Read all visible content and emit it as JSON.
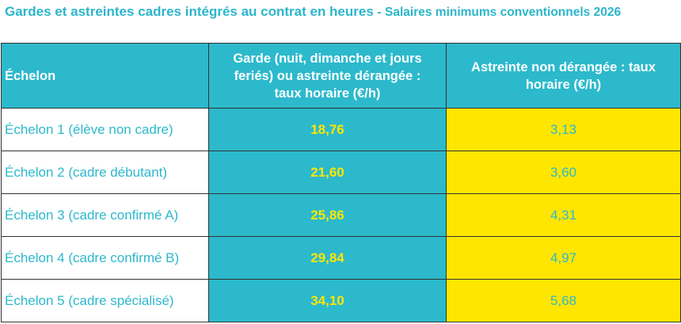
{
  "title": {
    "main": "Gardes et astreintes cadres intégrés au contrat en heures",
    "subtitle": "- Salaires minimums conventionnels 2026"
  },
  "colors": {
    "teal": "#2cb9cc",
    "yellow": "#ffe600"
  },
  "table": {
    "headers": [
      "Échelon",
      "Garde (nuit, dimanche et jours feriés) ou astreinte dérangée : taux horaire (€/h)",
      "Astreinte non dérangée : taux horaire (€/h)"
    ],
    "rows": [
      {
        "echelon": "Échelon 1 (élève non cadre)",
        "garde": "18,76",
        "astreinte": "3,13"
      },
      {
        "echelon": "Échelon 2 (cadre débutant)",
        "garde": "21,60",
        "astreinte": "3,60"
      },
      {
        "echelon": "Échelon 3 (cadre confirmé A)",
        "garde": "25,86",
        "astreinte": "4,31"
      },
      {
        "echelon": "Échelon 4 (cadre confirmé B)",
        "garde": "29,84",
        "astreinte": "4,97"
      },
      {
        "echelon": "Échelon 5 (cadre spécialisé)",
        "garde": "34,10",
        "astreinte": "5,68"
      }
    ]
  }
}
